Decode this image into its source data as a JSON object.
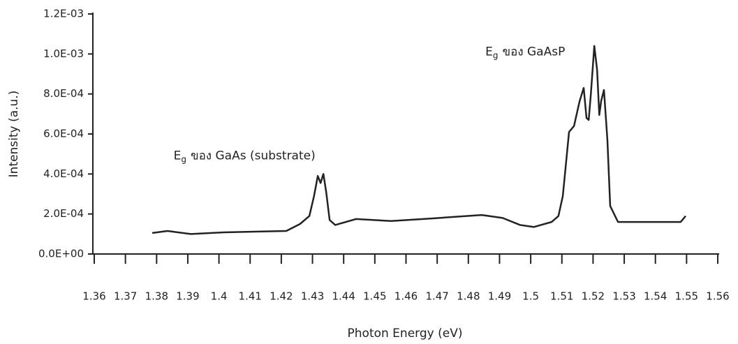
{
  "chart_data": {
    "type": "line",
    "xlabel": "Photon Energy (eV)",
    "ylabel": "Intensity (a.u.)",
    "annotations": [
      {
        "main": "E",
        "sub": "g",
        "rest": "ของ GaAs (substrate)",
        "x": 1.4,
        "y": 0.00049
      },
      {
        "main": "E",
        "sub": "g",
        "rest": "ของ  GaAsP",
        "x": 1.5,
        "y": 0.00101
      }
    ],
    "xlim": [
      1.36,
      1.56
    ],
    "xticks": [
      1.36,
      1.37,
      1.38,
      1.39,
      1.4,
      1.41,
      1.42,
      1.43,
      1.44,
      1.45,
      1.46,
      1.47,
      1.48,
      1.49,
      1.5,
      1.51,
      1.52,
      1.53,
      1.54,
      1.55,
      1.56
    ],
    "ylim": [
      0,
      0.0012
    ],
    "yticks": [
      {
        "value": 0,
        "label": "0.0E+00"
      },
      {
        "value": 0.0002,
        "label": "2.0E-04"
      },
      {
        "value": 0.0004,
        "label": "4.0E-04"
      },
      {
        "value": 0.0006,
        "label": "6.0E-04"
      },
      {
        "value": 0.0008,
        "label": "8.0E-04"
      },
      {
        "value": 0.001,
        "label": "1.0E-03"
      },
      {
        "value": 0.0012,
        "label": "1.2E-03"
      }
    ],
    "series": [
      {
        "color": "#222222",
        "x": [
          1.3786,
          1.3835,
          1.391,
          1.4015,
          1.4126,
          1.4216,
          1.426,
          1.429,
          1.4305,
          1.4317,
          1.4326,
          1.4335,
          1.4344,
          1.4355,
          1.4373,
          1.444,
          1.4552,
          1.4686,
          1.4843,
          1.491,
          1.4966,
          1.501,
          1.5067,
          1.5089,
          1.5103,
          1.5123,
          1.5139,
          1.5157,
          1.517,
          1.5179,
          1.5186,
          1.5193,
          1.5204,
          1.5213,
          1.522,
          1.5226,
          1.5235,
          1.5246,
          1.5255,
          1.528,
          1.5403,
          1.5481,
          1.5497
        ],
        "values": [
          0.000105,
          0.000115,
          0.0001,
          0.000108,
          0.000112,
          0.000115,
          0.00015,
          0.00019,
          0.00029,
          0.00039,
          0.000355,
          0.0004,
          0.00031,
          0.00017,
          0.000145,
          0.000175,
          0.000165,
          0.000178,
          0.000195,
          0.00018,
          0.000145,
          0.000135,
          0.00016,
          0.00019,
          0.00029,
          0.00061,
          0.00064,
          0.000765,
          0.00083,
          0.00068,
          0.00067,
          0.0008,
          0.00104,
          0.00092,
          0.000695,
          0.000765,
          0.00082,
          0.00057,
          0.00024,
          0.00016,
          0.00016,
          0.00016,
          0.00019
        ]
      }
    ]
  }
}
